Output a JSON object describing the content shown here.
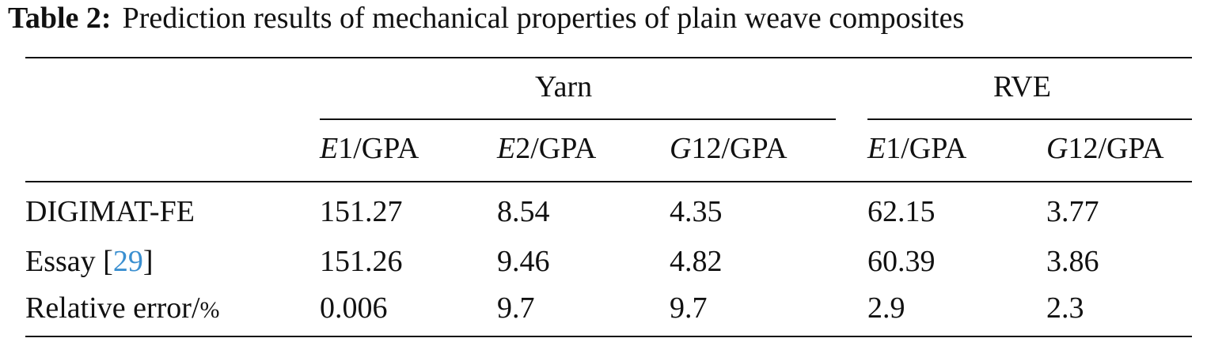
{
  "caption": {
    "label": "Table 2:",
    "text": "Prediction results of mechanical properties of plain weave composites"
  },
  "groups": {
    "yarn": "Yarn",
    "rve": "RVE"
  },
  "columns": [
    {
      "symbol": "E",
      "rest": "1/GPA"
    },
    {
      "symbol": "E",
      "rest": "2/GPA"
    },
    {
      "symbol": "G",
      "rest": "12/GPA"
    },
    {
      "symbol": "E",
      "rest": "1/GPA"
    },
    {
      "symbol": "G",
      "rest": "12/GPA"
    }
  ],
  "rows": [
    {
      "label": "DIGIMAT-FE",
      "values": [
        "151.27",
        "8.54",
        "4.35",
        "62.15",
        "3.77"
      ]
    },
    {
      "label": "Essay [",
      "cite": "29",
      "label_end": "]",
      "values": [
        "151.26",
        "9.46",
        "4.82",
        "60.39",
        "3.86"
      ]
    },
    {
      "label": "Relative error/",
      "unit": "%",
      "values": [
        "0.006",
        "9.7",
        "9.7",
        "2.9",
        "2.3"
      ]
    }
  ]
}
